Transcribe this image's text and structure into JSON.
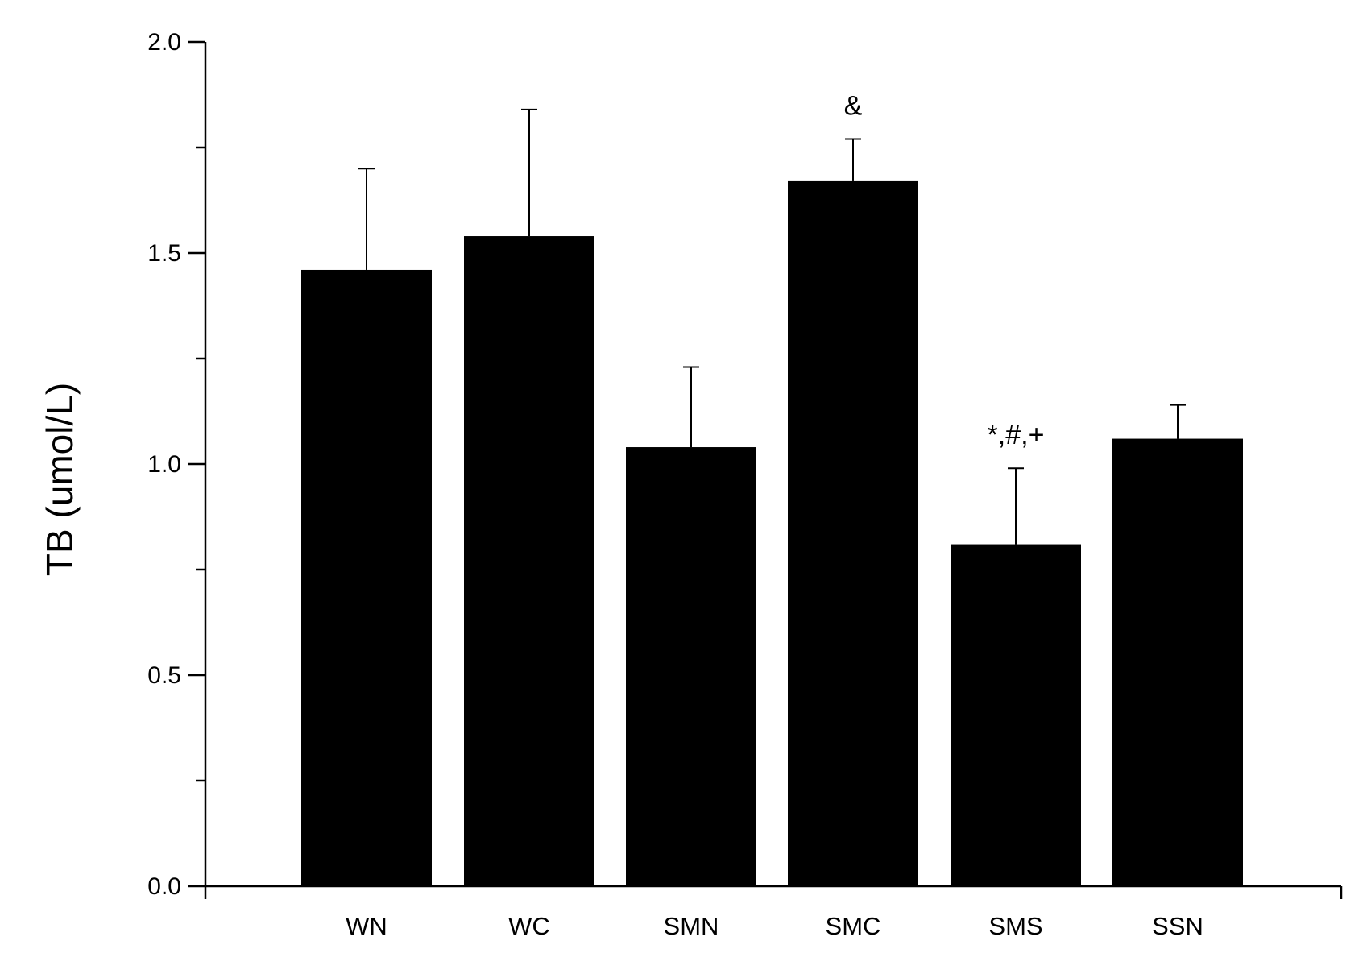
{
  "chart_data": {
    "type": "bar",
    "ylabel": "TB (umol/L)",
    "xlabel": "",
    "ylim": [
      0,
      2.0
    ],
    "yticks": [
      "0.0",
      "0.5",
      "1.0",
      "1.5",
      "2.0"
    ],
    "categories": [
      "WN",
      "WC",
      "SMN",
      "SMC",
      "SMS",
      "SSN"
    ],
    "values": [
      1.46,
      1.54,
      1.04,
      1.67,
      0.81,
      1.06
    ],
    "errors": [
      0.24,
      0.3,
      0.19,
      0.1,
      0.18,
      0.08
    ],
    "annotations": [
      {
        "category": "SMC",
        "text": "&"
      },
      {
        "category": "SMS",
        "text": "*,#,+"
      }
    ],
    "bar_color": "#000000",
    "grid": false,
    "legend": "none"
  }
}
